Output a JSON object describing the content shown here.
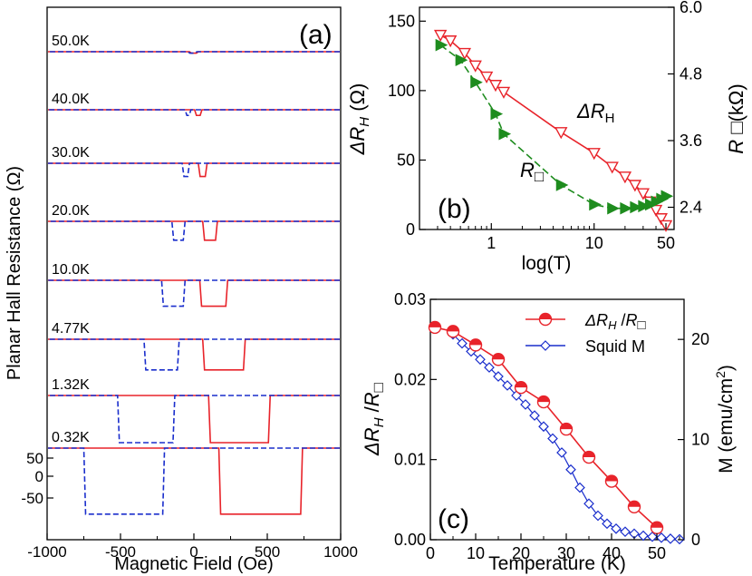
{
  "chart_data": [
    {
      "type": "line",
      "panel_label": "(a)",
      "xlabel": "Magnetic Field (Oe)",
      "ylabel": "Planar Hall Resistance (Ω)",
      "xlim": [
        -1000,
        1000
      ],
      "xticks": [
        "-1000",
        "-500",
        "0",
        "500",
        "1000"
      ],
      "yticks_bottom_trace": [
        "50",
        "0",
        "-50"
      ],
      "series": [
        {
          "label": "50.0K",
          "dip_down_oe": [
            -40,
            20
          ],
          "dip_up_oe": [
            -30,
            30
          ],
          "depth_ohm": 3
        },
        {
          "label": "40.0K",
          "dip_down_oe": [
            -60,
            -20
          ],
          "dip_up_oe": [
            5,
            55
          ],
          "depth_ohm": 12
        },
        {
          "label": "30.0K",
          "dip_down_oe": [
            -80,
            -30
          ],
          "dip_up_oe": [
            30,
            90
          ],
          "depth_ohm": 28
        },
        {
          "label": "20.0K",
          "dip_down_oe": [
            -150,
            -60
          ],
          "dip_up_oe": [
            60,
            160
          ],
          "depth_ohm": 40
        },
        {
          "label": "10.0K",
          "dip_down_oe": [
            -220,
            -60
          ],
          "dip_up_oe": [
            40,
            230
          ],
          "depth_ohm": 55
        },
        {
          "label": "4.77K",
          "dip_down_oe": [
            -340,
            -100
          ],
          "dip_up_oe": [
            60,
            350
          ],
          "depth_ohm": 65
        },
        {
          "label": "1.32K",
          "dip_down_oe": [
            -520,
            -130
          ],
          "dip_up_oe": [
            100,
            520
          ],
          "depth_ohm": 100
        },
        {
          "label": "0.32K",
          "dip_down_oe": [
            -750,
            -200
          ],
          "dip_up_oe": [
            170,
            740
          ],
          "depth_ohm": 140
        }
      ],
      "legend": {
        "up_sweep": "solid red",
        "down_sweep": "dashed blue"
      }
    },
    {
      "type": "line",
      "panel_label": "(b)",
      "xlabel": "log(T)",
      "xscale": "log",
      "xticks": [
        "1",
        "10",
        "50"
      ],
      "ylabel_left": "ΔR_H (Ω)",
      "ylim_left": [
        0,
        160
      ],
      "yticks_left": [
        "0",
        "50",
        "100",
        "150"
      ],
      "ylabel_right": "R□(kΩ)",
      "ylim_right": [
        2.0,
        6.0
      ],
      "yticks_right": [
        "2.4",
        "3.6",
        "4.8",
        "6.0"
      ],
      "series": [
        {
          "name": "ΔR_H",
          "axis": "left",
          "marker": "open-triangle-down",
          "color": "#e8232a",
          "x": [
            0.32,
            0.4,
            0.55,
            0.7,
            0.9,
            1.1,
            1.32,
            4.77,
            10,
            15,
            20,
            25,
            30,
            35,
            40,
            45,
            50
          ],
          "y": [
            140,
            136,
            127,
            118,
            110,
            104,
            99,
            70,
            55,
            45,
            38,
            32,
            26,
            20,
            14,
            8,
            3
          ]
        },
        {
          "name": "R□",
          "axis": "right",
          "marker": "filled-triangle-right",
          "color": "#1e8c1e",
          "x": [
            0.32,
            0.5,
            0.7,
            1.1,
            1.32,
            4.77,
            10,
            15,
            20,
            25,
            30,
            35,
            40,
            45,
            50
          ],
          "y": [
            5.32,
            5.05,
            4.65,
            4.08,
            3.72,
            2.8,
            2.45,
            2.38,
            2.38,
            2.4,
            2.42,
            2.45,
            2.5,
            2.55,
            2.6
          ]
        }
      ]
    },
    {
      "type": "line",
      "panel_label": "(c)",
      "xlabel": "Temperature (K)",
      "xlim": [
        0,
        56
      ],
      "xticks": [
        "0",
        "10",
        "20",
        "30",
        "40",
        "50"
      ],
      "ylabel_left": "ΔR_H /R□",
      "ylim_left": [
        0,
        0.03
      ],
      "yticks_left": [
        "0.00",
        "0.01",
        "0.02",
        "0.03"
      ],
      "ylabel_right": "M (emu/cm²)",
      "ylim_right": [
        0,
        24.0
      ],
      "yticks_right": [
        "0",
        "10",
        "20"
      ],
      "legend": [
        "ΔR_H /R□",
        "Squid M"
      ],
      "series": [
        {
          "name": "ΔR_H /R□",
          "axis": "left",
          "marker": "half-filled-circle",
          "color": "#e8232a",
          "x": [
            1,
            5,
            10,
            15,
            20,
            25,
            30,
            35,
            40,
            45,
            50
          ],
          "y": [
            0.0265,
            0.026,
            0.0243,
            0.0225,
            0.019,
            0.0172,
            0.0138,
            0.0103,
            0.0073,
            0.0041,
            0.0015
          ]
        },
        {
          "name": "Squid M",
          "axis": "right",
          "marker": "open-diamond",
          "color": "#1a2ecc",
          "x": [
            5,
            7,
            9,
            11,
            13,
            15,
            17,
            19,
            21,
            23,
            25,
            27,
            29,
            31,
            33,
            35,
            37,
            39,
            41,
            43,
            45,
            47,
            49,
            51,
            53,
            55
          ],
          "y": [
            20.5,
            19.6,
            18.8,
            18.0,
            17.2,
            16.3,
            15.4,
            14.4,
            13.5,
            12.4,
            11.3,
            10.1,
            8.7,
            7.0,
            5.2,
            3.6,
            2.4,
            1.6,
            1.1,
            0.8,
            0.6,
            0.4,
            0.3,
            0.2,
            0.1,
            0.05
          ]
        }
      ]
    }
  ]
}
